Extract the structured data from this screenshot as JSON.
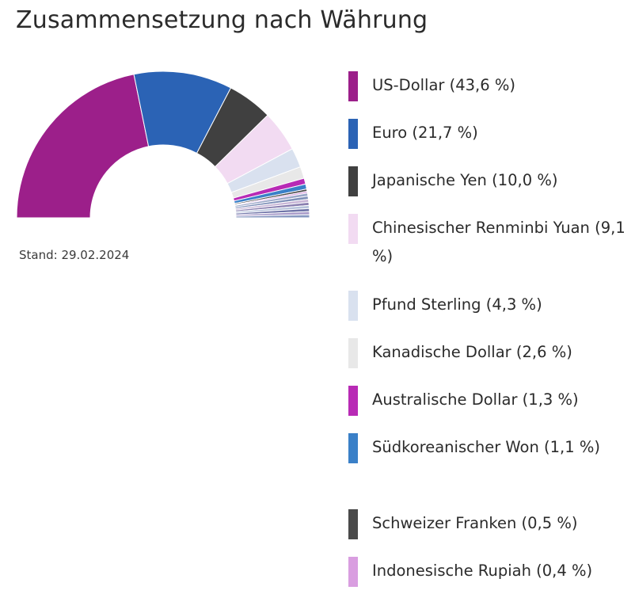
{
  "chart_data": {
    "type": "pie",
    "variant": "semi-donut",
    "title": "Zusammensetzung nach Währung",
    "note": "Stand: 29.02.2024",
    "series": [
      {
        "name": "US-Dollar",
        "value": 43.6,
        "label": "US-Dollar (43,6 %)",
        "color": "#9c1f8a"
      },
      {
        "name": "Euro",
        "value": 21.7,
        "label": "Euro (21,7 %)",
        "color": "#2b63b5"
      },
      {
        "name": "Japanische Yen",
        "value": 10.0,
        "label": "Japanische Yen (10,0 %)",
        "color": "#404040"
      },
      {
        "name": "Chinesischer Renminbi Yuan",
        "value": 9.1,
        "label": "Chinesischer Renminbi Yuan (9,1 %)",
        "color": "#f2dbf2"
      },
      {
        "name": "Pfund Sterling",
        "value": 4.3,
        "label": "Pfund Sterling (4,3 %)",
        "color": "#d9e1ef"
      },
      {
        "name": "Kanadische Dollar",
        "value": 2.6,
        "label": "Kanadische Dollar (2,6 %)",
        "color": "#e8e8e8"
      },
      {
        "name": "Australische Dollar",
        "value": 1.3,
        "label": "Australische Dollar (1,3 %)",
        "color": "#b82ab5"
      },
      {
        "name": "Südkoreanischer Won",
        "value": 1.1,
        "label": "Südkoreanischer Won (1,1 %)",
        "color": "#3a80c8"
      },
      {
        "name": "Schweizer Franken",
        "value": 0.5,
        "label": "Schweizer Franken (0,5 %)",
        "color": "#4a4a4a"
      },
      {
        "name": "Indonesische Rupiah",
        "value": 0.4,
        "label": "Indonesische Rupiah (0,4 %)",
        "color": "#d99ee0"
      }
    ],
    "other_slice_colors": [
      "#9aa6c8",
      "#7e8fb8",
      "#c8b5d6",
      "#8a7fb0",
      "#b7c3db",
      "#6f74a8",
      "#a89bc9",
      "#8798c0"
    ],
    "legend_position": "right"
  }
}
